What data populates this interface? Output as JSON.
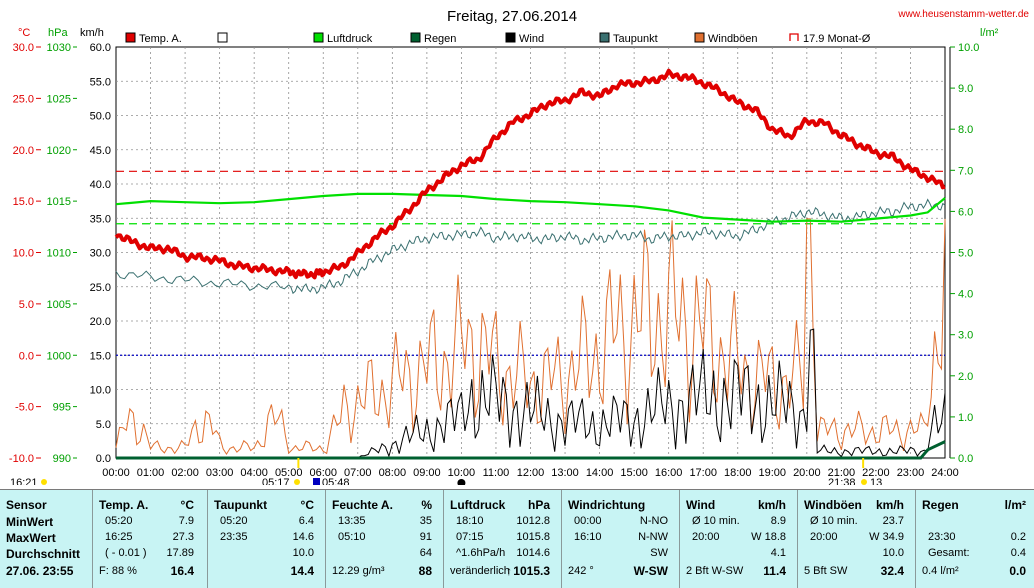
{
  "title": "Freitag, 27.06.2014",
  "website": "www.heusenstamm-wetter.de",
  "units": {
    "temp": "°C",
    "pressure": "hPa",
    "speed": "km/h",
    "rain": "l/m²"
  },
  "legend": [
    {
      "label": "Temp. A.",
      "color": "#e00000",
      "style": "filled"
    },
    {
      "label": "",
      "color": "#ffffff",
      "style": "empty"
    },
    {
      "label": "Luftdruck",
      "color": "#00e000",
      "style": "filled"
    },
    {
      "label": "Regen",
      "color": "#006030",
      "style": "filled"
    },
    {
      "label": "Wind",
      "color": "#000000",
      "style": "filled"
    },
    {
      "label": "Taupunkt",
      "color": "#3a7070",
      "style": "filled"
    },
    {
      "label": "Windböen",
      "color": "#e07030",
      "style": "filled"
    },
    {
      "label": "17.9 Monat-Ø",
      "color": "#e00000",
      "style": "bracket"
    }
  ],
  "axes": {
    "temp": [
      "30.0",
      "25.0",
      "20.0",
      "15.0",
      "10.0",
      "5.0",
      "0.0",
      "-5.0",
      "-10.0"
    ],
    "pressure": [
      "1030",
      "1025",
      "1020",
      "1015",
      "1010",
      "1005",
      "1000",
      "995",
      "990"
    ],
    "speed": [
      "60.0",
      "55.0",
      "50.0",
      "45.0",
      "40.0",
      "35.0",
      "30.0",
      "25.0",
      "20.0",
      "15.0",
      "10.0",
      "5.0",
      "0.0"
    ],
    "rain": [
      "10.0",
      "9.0",
      "8.0",
      "7.0",
      "6.0",
      "5.0",
      "4.0",
      "3.0",
      "2.0",
      "1.0",
      "0.0"
    ],
    "time": [
      "00:00",
      "01:00",
      "02:00",
      "03:00",
      "04:00",
      "05:00",
      "06:00",
      "07:00",
      "08:00",
      "09:00",
      "10:00",
      "11:00",
      "12:00",
      "13:00",
      "14:00",
      "15:00",
      "16:00",
      "17:00",
      "18:00",
      "19:00",
      "20:00",
      "21:00",
      "22:00",
      "23:00",
      "24:00"
    ]
  },
  "events": {
    "left_time": "16:21",
    "sunrise": "05:17",
    "civil": "05:48",
    "sunset": "21:38",
    "sunset_extra": "13"
  },
  "colors": {
    "temp": "#e00000",
    "pressure": "#00e000",
    "dew": "#3a7070",
    "gust": "#e07030",
    "wind": "#000000",
    "rain": "#006030",
    "grid": "#909090",
    "freeze": "#0000c0",
    "table_bg": "#c8f4f4"
  },
  "chart_data": {
    "type": "line",
    "title": "Freitag, 27.06.2014",
    "x_range": [
      "00:00",
      "24:00"
    ],
    "temp_range": [
      -10,
      30
    ],
    "pressure_range": [
      990,
      1030
    ],
    "speed_range": [
      0,
      60
    ],
    "rain_range": [
      0,
      10
    ],
    "monthly_avg_temp": 17.9,
    "pressure_ref": 1012.8,
    "series": [
      {
        "name": "Temp. A.",
        "axis": "temp",
        "x": [
          0,
          0.5,
          1,
          1.5,
          2,
          2.5,
          3,
          3.5,
          4,
          4.5,
          5,
          5.33,
          5.75,
          6,
          6.5,
          7,
          7.5,
          8,
          8.5,
          9,
          9.5,
          10,
          10.5,
          11,
          11.5,
          12,
          12.5,
          13,
          13.5,
          14,
          14.5,
          15,
          15.5,
          16,
          16.5,
          17,
          17.5,
          18,
          18.5,
          19,
          19.5,
          20,
          20.5,
          21,
          21.5,
          22,
          22.5,
          23,
          23.5,
          24
        ],
        "y": [
          11.8,
          11.0,
          10.4,
          10.4,
          9.6,
          9.5,
          9.2,
          8.7,
          8.5,
          8.3,
          8.1,
          7.9,
          7.9,
          8.1,
          8.6,
          9.9,
          11.4,
          12.6,
          14.2,
          16.0,
          17.3,
          18.5,
          19.1,
          21.2,
          22.7,
          23.5,
          24.5,
          24.8,
          25.6,
          25.2,
          26.3,
          26.5,
          26.7,
          27.3,
          27.1,
          26.5,
          25.7,
          24.6,
          23.9,
          22.0,
          21.3,
          22.8,
          22.6,
          21.4,
          20.5,
          19.7,
          19.3,
          18.1,
          17.3,
          16.4
        ]
      },
      {
        "name": "Luftdruck",
        "axis": "pressure",
        "x": [
          0,
          1,
          2,
          3,
          4,
          5,
          6,
          7,
          8,
          9,
          10,
          11,
          12,
          13,
          14,
          15,
          16,
          17,
          18,
          19,
          20,
          21,
          22,
          23,
          23.5,
          24
        ],
        "y": [
          1014.7,
          1015.0,
          1014.9,
          1014.8,
          1014.9,
          1015.2,
          1015.5,
          1015.7,
          1015.7,
          1015.6,
          1015.5,
          1015.2,
          1015.0,
          1014.9,
          1014.7,
          1014.5,
          1014.1,
          1013.4,
          1013.2,
          1013.0,
          1013.1,
          1013.0,
          1013.3,
          1013.6,
          1013.9,
          1015.3
        ]
      },
      {
        "name": "Taupunkt",
        "axis": "temp",
        "x": [
          0,
          1,
          2,
          3,
          4,
          5,
          5.5,
          6,
          6.5,
          7,
          7.5,
          8,
          8.5,
          9,
          9.5,
          10,
          10.5,
          11,
          11.5,
          12,
          12.5,
          13,
          13.5,
          14,
          14.5,
          15,
          15.5,
          16,
          16.5,
          17,
          17.5,
          18,
          18.5,
          19,
          19.5,
          20,
          20.5,
          21,
          21.5,
          22,
          22.5,
          23,
          23.5,
          24
        ],
        "y": [
          8.0,
          7.6,
          7.3,
          7.0,
          6.8,
          6.6,
          6.4,
          6.6,
          7.2,
          8.2,
          9.3,
          10.2,
          10.9,
          11.4,
          11.6,
          11.7,
          12.0,
          11.4,
          11.6,
          11.4,
          11.3,
          11.6,
          11.2,
          11.4,
          11.6,
          11.7,
          11.3,
          11.6,
          11.6,
          12.0,
          11.8,
          11.6,
          12.2,
          13.0,
          13.4,
          14.0,
          13.7,
          13.3,
          13.5,
          13.9,
          14.0,
          14.5,
          14.6,
          14.6
        ]
      },
      {
        "name": "Wind",
        "axis": "speed",
        "peaks": [
          {
            "t": "20:00",
            "v": 18.8
          }
        ],
        "avg_10min_min": 8.9,
        "avg_10min_max": 18.8
      },
      {
        "name": "Windböen",
        "axis": "speed",
        "peaks": [
          {
            "t": "20:00",
            "v": 34.9
          }
        ],
        "max": 34.9
      },
      {
        "name": "Regen",
        "axis": "rain",
        "x": [
          0,
          23.3,
          23.5,
          24
        ],
        "y": [
          0,
          0,
          0.2,
          0.4
        ]
      }
    ]
  },
  "table": {
    "sensor": {
      "title": "Sensor",
      "rows": [
        "MinWert",
        "MaxWert",
        "Durchschnitt"
      ],
      "date": "27.06. 23:55"
    },
    "temp": {
      "title": "Temp. A.",
      "unit": "°C",
      "rows": [
        [
          "05:20",
          "7.9"
        ],
        [
          "16:25",
          "27.3"
        ],
        [
          "( - 0.01 )",
          "17.89"
        ]
      ],
      "extra_label": "F: 88 %",
      "current": "16.4"
    },
    "dew": {
      "title": "Taupunkt",
      "unit": "°C",
      "rows": [
        [
          "05:20",
          "6.4"
        ],
        [
          "23:35",
          "14.6"
        ],
        [
          "",
          "10.0"
        ]
      ],
      "current": "14.4"
    },
    "humidity": {
      "title": "Feuchte A.",
      "unit": "%",
      "rows": [
        [
          "13:35",
          "35"
        ],
        [
          "05:10",
          "91"
        ],
        [
          "",
          "64"
        ]
      ],
      "extra_label": "12.29 g/m³",
      "current": "88"
    },
    "pressure": {
      "title": "Luftdruck",
      "unit": "hPa",
      "rows": [
        [
          "18:10",
          "1012.8"
        ],
        [
          "07:15",
          "1015.8"
        ],
        [
          "^1.6hPa/h",
          "1014.6"
        ]
      ],
      "extra_label": "veränderlich",
      "arrow": "↑",
      "current": "1015.3"
    },
    "wind_dir": {
      "title": "Windrichtung",
      "rows": [
        [
          "00:00",
          "N-NO"
        ],
        [
          "16:10",
          "N-NW"
        ],
        [
          "",
          "SW"
        ]
      ],
      "extra_label": "242 °",
      "current": "W-SW"
    },
    "wind": {
      "title": "Wind",
      "unit": "km/h",
      "rows": [
        [
          "Ø 10 min.",
          "8.9"
        ],
        [
          "20:00",
          "W 18.8"
        ],
        [
          "",
          "4.1"
        ]
      ],
      "extra_label": "2 Bft W-SW",
      "current": "11.4"
    },
    "gust": {
      "title": "Windböen",
      "unit": "km/h",
      "rows": [
        [
          "Ø 10 min.",
          "23.7"
        ],
        [
          "20:00",
          "W 34.9"
        ],
        [
          "",
          "10.0"
        ]
      ],
      "extra_label": "5 Bft SW",
      "current": "32.4"
    },
    "rain": {
      "title": "Regen",
      "unit": "l/m²",
      "rows": [
        [
          "",
          ""
        ],
        [
          "23:30",
          "0.2"
        ],
        [
          "Gesamt:",
          "0.4"
        ]
      ],
      "extra_label": "0.4 l/m²",
      "current": "0.0"
    }
  }
}
